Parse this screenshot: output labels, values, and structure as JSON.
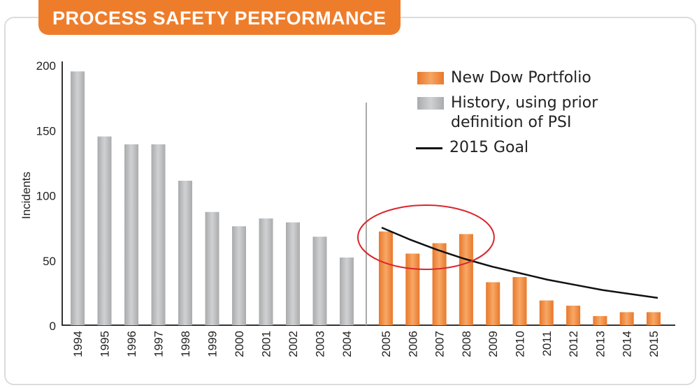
{
  "title": "PROCESS SAFETY PERFORMANCE",
  "chart_data": {
    "type": "bar",
    "title": "PROCESS SAFETY PERFORMANCE",
    "ylabel": "Incidents",
    "xlabel": "",
    "ylim": [
      0,
      200
    ],
    "yticks": [
      0,
      50,
      100,
      150,
      200
    ],
    "grid": false,
    "legend_placement": "top-right",
    "categories": [
      "1994",
      "1995",
      "1996",
      "1997",
      "1998",
      "1999",
      "2000",
      "2001",
      "2002",
      "2003",
      "2004",
      "2005",
      "2006",
      "2007",
      "2008",
      "2009",
      "2010",
      "2011",
      "2012",
      "2013",
      "2014",
      "2015"
    ],
    "series": [
      {
        "name": "History, using prior definition of PSI",
        "color": "#b4b6b8",
        "x": [
          "1994",
          "1995",
          "1996",
          "1997",
          "1998",
          "1999",
          "2000",
          "2001",
          "2002",
          "2003",
          "2004"
        ],
        "values": [
          195,
          145,
          139,
          139,
          111,
          87,
          76,
          82,
          79,
          68,
          52
        ]
      },
      {
        "name": "New Dow Portfolio",
        "color": "#ee8a3a",
        "x": [
          "2005",
          "2006",
          "2007",
          "2008",
          "2009",
          "2010",
          "2011",
          "2012",
          "2013",
          "2014",
          "2015"
        ],
        "values": [
          72,
          55,
          63,
          70,
          33,
          37,
          19,
          15,
          7,
          10,
          10
        ]
      },
      {
        "name": "2015 Goal",
        "type": "line",
        "color": "#111111",
        "x": [
          "2005",
          "2006",
          "2007",
          "2008",
          "2009",
          "2010",
          "2011",
          "2012",
          "2013",
          "2014",
          "2015"
        ],
        "values": [
          75,
          66,
          58,
          51,
          45,
          40,
          35,
          31,
          27,
          24,
          21
        ]
      }
    ],
    "annotations": [
      {
        "type": "ellipse",
        "color": "#d9252a",
        "around": [
          "2005",
          "2008"
        ]
      }
    ],
    "separator_between": [
      "2004",
      "2005"
    ]
  },
  "legend": [
    {
      "label": "New Dow Portfolio",
      "color": "#ee8a3a"
    },
    {
      "label": "History, using prior definition of PSI",
      "color": "#b4b6b8"
    },
    {
      "label": "2015 Goal",
      "color": "#111111"
    }
  ]
}
